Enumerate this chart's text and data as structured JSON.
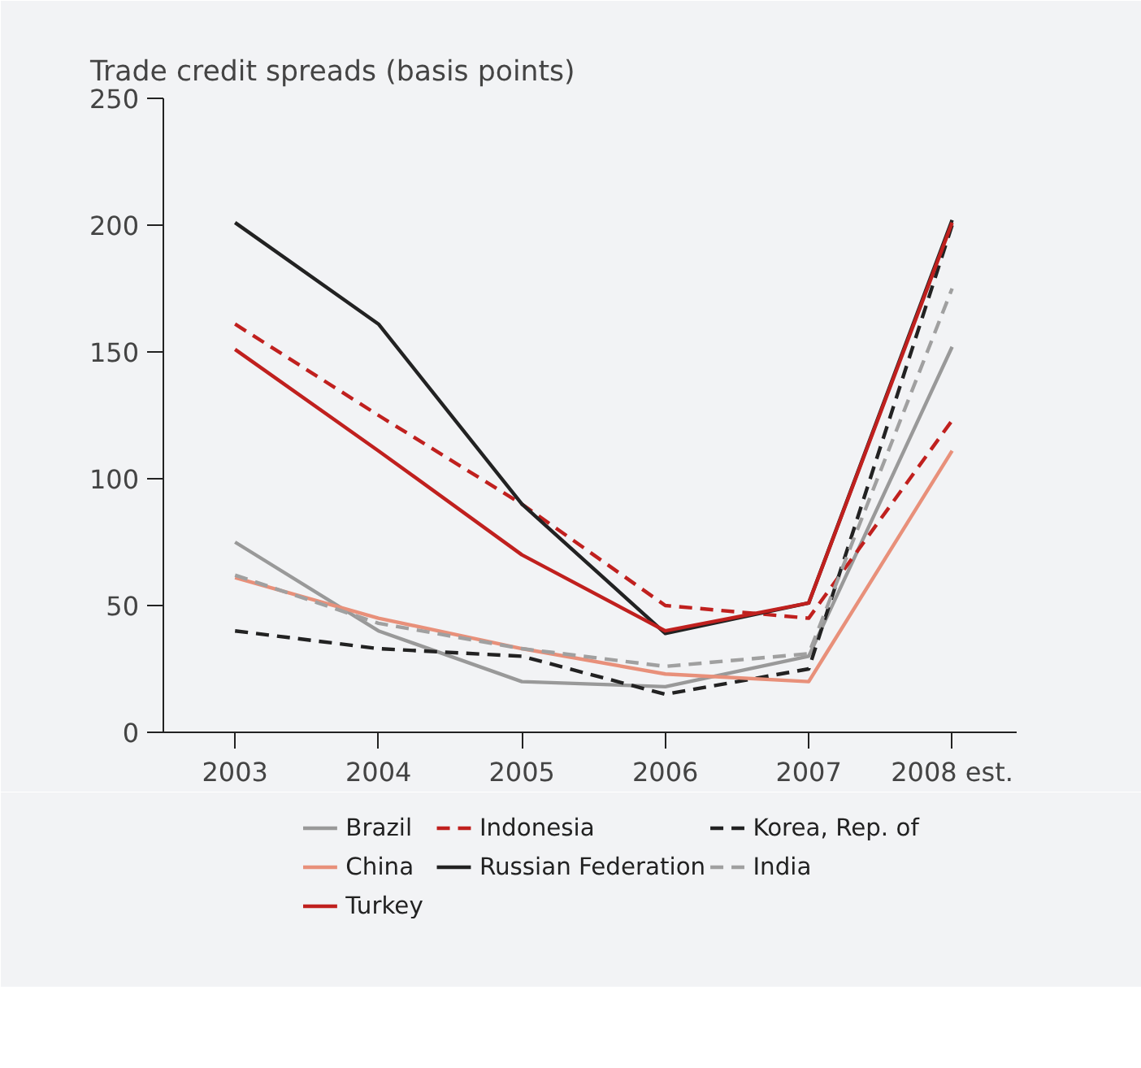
{
  "chart_data": {
    "type": "line",
    "ylabel": "Trade credit spreads (basis points)",
    "categories": [
      "2003",
      "2004",
      "2005",
      "2006",
      "2007",
      "2008 est."
    ],
    "ylim": [
      0,
      250
    ],
    "yticks": [
      0,
      50,
      100,
      150,
      200,
      250
    ],
    "grid": false,
    "legend": "bottom",
    "series": [
      {
        "name": "Brazil",
        "color": "#999999",
        "line_style": "solid",
        "values": [
          75,
          40,
          20,
          18,
          30,
          152
        ]
      },
      {
        "name": "Indonesia",
        "color": "#c0201e",
        "line_style": "dashed",
        "values": [
          161,
          125,
          90,
          50,
          45,
          123
        ]
      },
      {
        "name": "Korea, Rep. of",
        "color": "#222222",
        "line_style": "dashed",
        "values": [
          40,
          33,
          30,
          15,
          25,
          200
        ]
      },
      {
        "name": "China",
        "color": "#e8907a",
        "line_style": "solid",
        "values": [
          61,
          45,
          33,
          23,
          20,
          111
        ]
      },
      {
        "name": "Russian Federation",
        "color": "#222222",
        "line_style": "solid",
        "values": [
          201,
          161,
          90,
          39,
          51,
          202
        ]
      },
      {
        "name": "India",
        "color": "#a0a0a0",
        "line_style": "dashed",
        "values": [
          62,
          43,
          33,
          26,
          31,
          175
        ]
      },
      {
        "name": "Turkey",
        "color": "#c0201e",
        "line_style": "solid",
        "values": [
          151,
          111,
          70,
          40,
          51,
          201
        ]
      }
    ]
  }
}
